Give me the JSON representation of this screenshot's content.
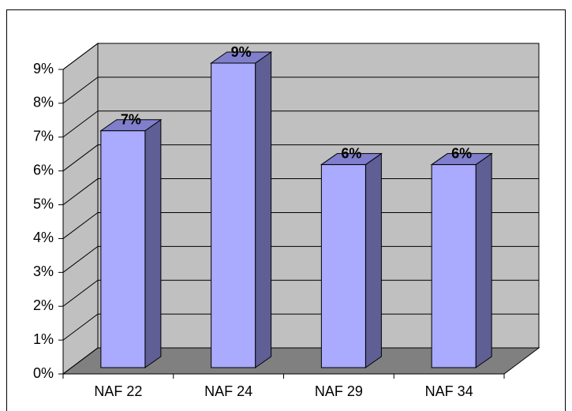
{
  "chart_data": {
    "type": "bar3d",
    "categories": [
      "NAF 22",
      "NAF 24",
      "NAF 29",
      "NAF 34"
    ],
    "values": [
      7,
      9,
      6,
      6
    ],
    "value_labels": [
      "7%",
      "9%",
      "6%",
      "6%"
    ],
    "color": "#aaaaff",
    "ylim": [
      0,
      9
    ],
    "yticks": [
      {
        "value": 0,
        "label": "0%"
      },
      {
        "value": 1,
        "label": "1%"
      },
      {
        "value": 2,
        "label": "2%"
      },
      {
        "value": 3,
        "label": "3%"
      },
      {
        "value": 4,
        "label": "4%"
      },
      {
        "value": 5,
        "label": "5%"
      },
      {
        "value": 6,
        "label": "6%"
      },
      {
        "value": 7,
        "label": "7%"
      },
      {
        "value": 8,
        "label": "8%"
      },
      {
        "value": 9,
        "label": "9%"
      }
    ],
    "grid": true
  }
}
